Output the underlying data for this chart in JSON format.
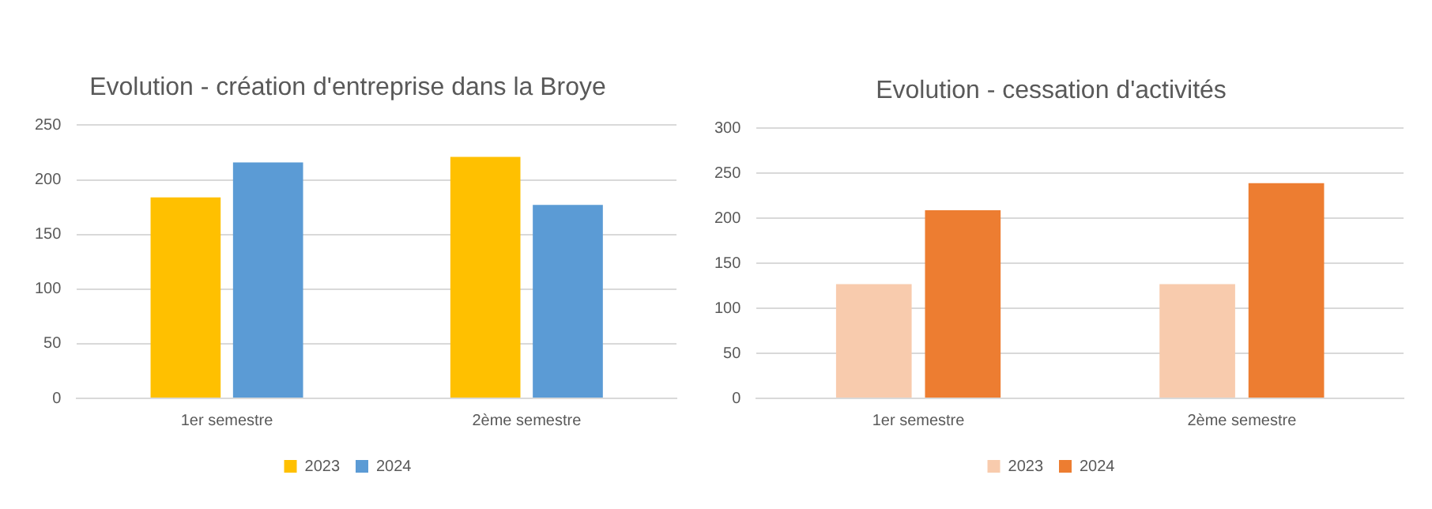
{
  "chart_data": [
    {
      "type": "bar",
      "title": "Evolution - création d'entreprise dans la Broye",
      "categories": [
        "1er semestre",
        "2ème semestre"
      ],
      "series": [
        {
          "name": "2023",
          "color": "#ffc000",
          "values": [
            184,
            221
          ]
        },
        {
          "name": "2024",
          "color": "#5b9bd5",
          "values": [
            216,
            177
          ]
        }
      ],
      "ylim": [
        0,
        250
      ],
      "yticks": [
        0,
        50,
        100,
        150,
        200,
        250
      ],
      "grid": "y",
      "legend": "bottom"
    },
    {
      "type": "bar",
      "title": "Evolution - cessation d'activités",
      "categories": [
        "1er semestre",
        "2ème semestre"
      ],
      "series": [
        {
          "name": "2023",
          "color": "#f8cbad",
          "values": [
            127,
            127
          ]
        },
        {
          "name": "2024",
          "color": "#ed7d31",
          "values": [
            209,
            239
          ]
        }
      ],
      "ylim": [
        0,
        300
      ],
      "yticks": [
        0,
        50,
        100,
        150,
        200,
        250,
        300
      ],
      "grid": "y",
      "legend": "bottom"
    }
  ]
}
